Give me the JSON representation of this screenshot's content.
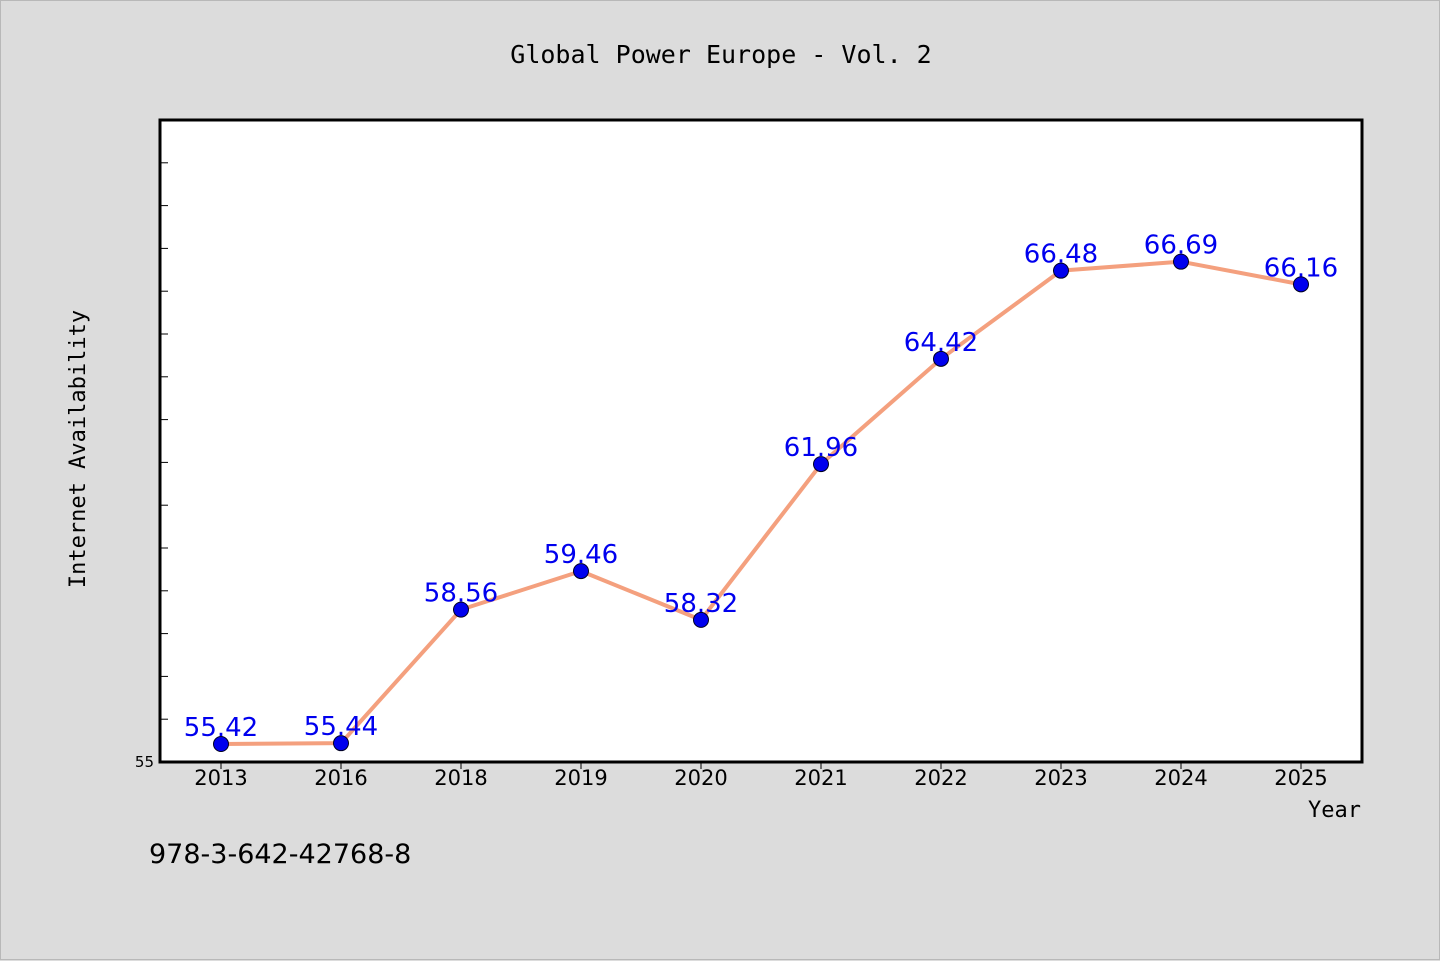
{
  "chart_data": {
    "type": "line",
    "title": "Global Power Europe - Vol. 2",
    "xlabel": "Year",
    "ylabel": "Internet Availability",
    "categories": [
      "2013",
      "2016",
      "2018",
      "2019",
      "2020",
      "2021",
      "2022",
      "2023",
      "2024",
      "2025"
    ],
    "series": [
      {
        "values": [
          55.42,
          55.44,
          58.56,
          59.46,
          58.32,
          61.96,
          64.42,
          66.48,
          66.69,
          66.16
        ],
        "labels": [
          "55.42",
          "55.44",
          "58.56",
          "59.46",
          "58.32",
          "61.96",
          "64.42",
          "66.48",
          "66.69",
          "66.16"
        ],
        "line_color": "#f4a07e",
        "marker_color": "#0000ee",
        "label_color": "#0000ee"
      }
    ],
    "ylim": [
      55,
      70
    ],
    "y_tick_labels": [
      "55"
    ],
    "y_minor_tick_step": 1,
    "grid": false,
    "legend": "none"
  },
  "footer_text": "978-3-642-42768-8",
  "colors": {
    "background": "#dcdcdc",
    "plot_background": "#ffffff",
    "axis": "#000000"
  }
}
